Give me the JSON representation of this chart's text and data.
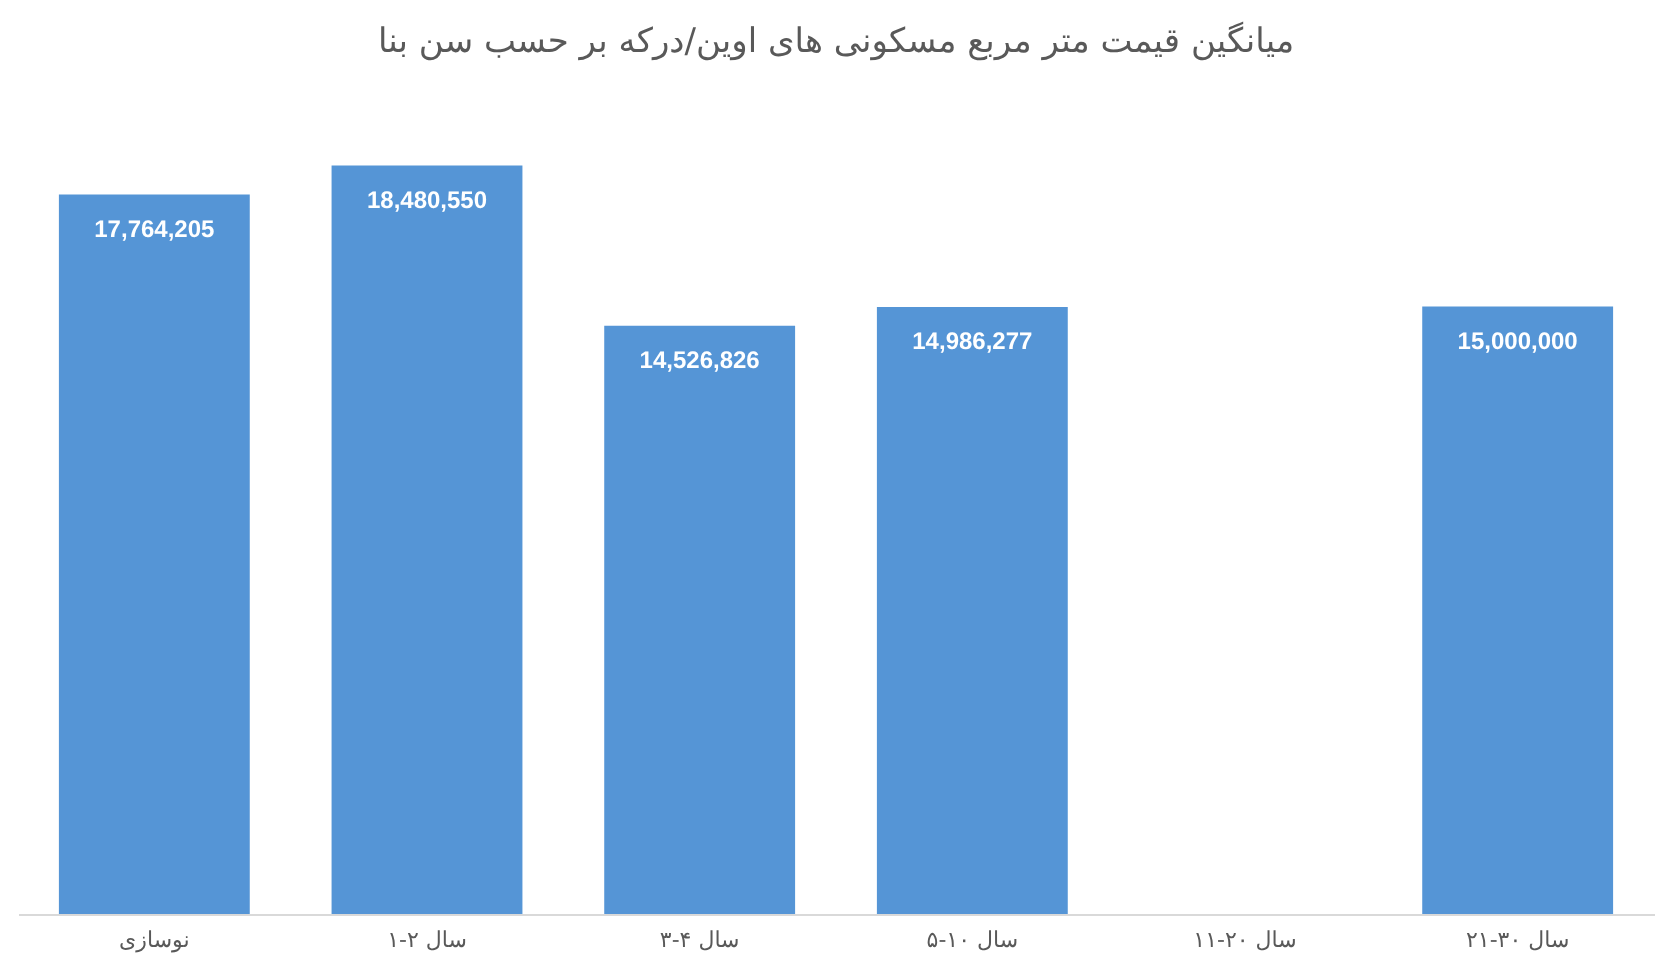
{
  "chart_data": {
    "type": "bar",
    "title": "میانگین قیمت متر مربع مسکونی های اوین/درکه بر حسب سن بنا",
    "categories": [
      "نوسازی",
      "۱-۲ سال",
      "۳-۴ سال",
      "۵-۱۰ سال",
      "۱۱-۲۰ سال",
      "۲۱-۳۰ سال"
    ],
    "values": [
      17764205,
      18480550,
      14526826,
      14986277,
      null,
      15000000
    ],
    "value_labels": [
      "17,764,205",
      "18,480,550",
      "14,526,826",
      "14,986,277",
      null,
      "15,000,000"
    ],
    "color": "#5595d6",
    "tick_labels": "x"
  }
}
